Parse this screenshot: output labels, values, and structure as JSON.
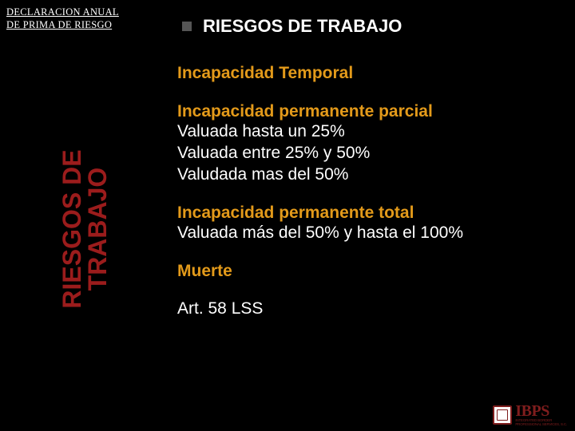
{
  "top_left": {
    "line1": "DECLARACION ANUAL",
    "line2": "DE PRIMA DE RIESGO"
  },
  "main_title": "RIESGOS DE TRABAJO",
  "vertical_label": {
    "line1": "RIESGOS DE",
    "line2": "TRABAJO"
  },
  "sections": {
    "h1": "Incapacidad Temporal",
    "parcial": {
      "title": "Incapacidad permanente parcial",
      "l1": "Valuada hasta un 25%",
      "l2": "Valuada entre 25% y 50%",
      "l3": "Valudada mas del 50%"
    },
    "total": {
      "title": "Incapacidad permanente total",
      "l1": "Valuada más del 50% y hasta el 100%"
    },
    "muerte": "Muerte",
    "art": "Art. 58 LSS"
  },
  "logo": {
    "big": "IBPS",
    "small1": "INTEGRATED BORDER",
    "small2": "PROFESSIONAL SERVICES, S.C."
  },
  "colors": {
    "bg": "#000000",
    "accent_orange": "#e39a1a",
    "accent_red": "#9b1c1c",
    "text_white": "#ffffff",
    "bullet_gray": "#555555",
    "logo_maroon": "#7f1d1d"
  }
}
